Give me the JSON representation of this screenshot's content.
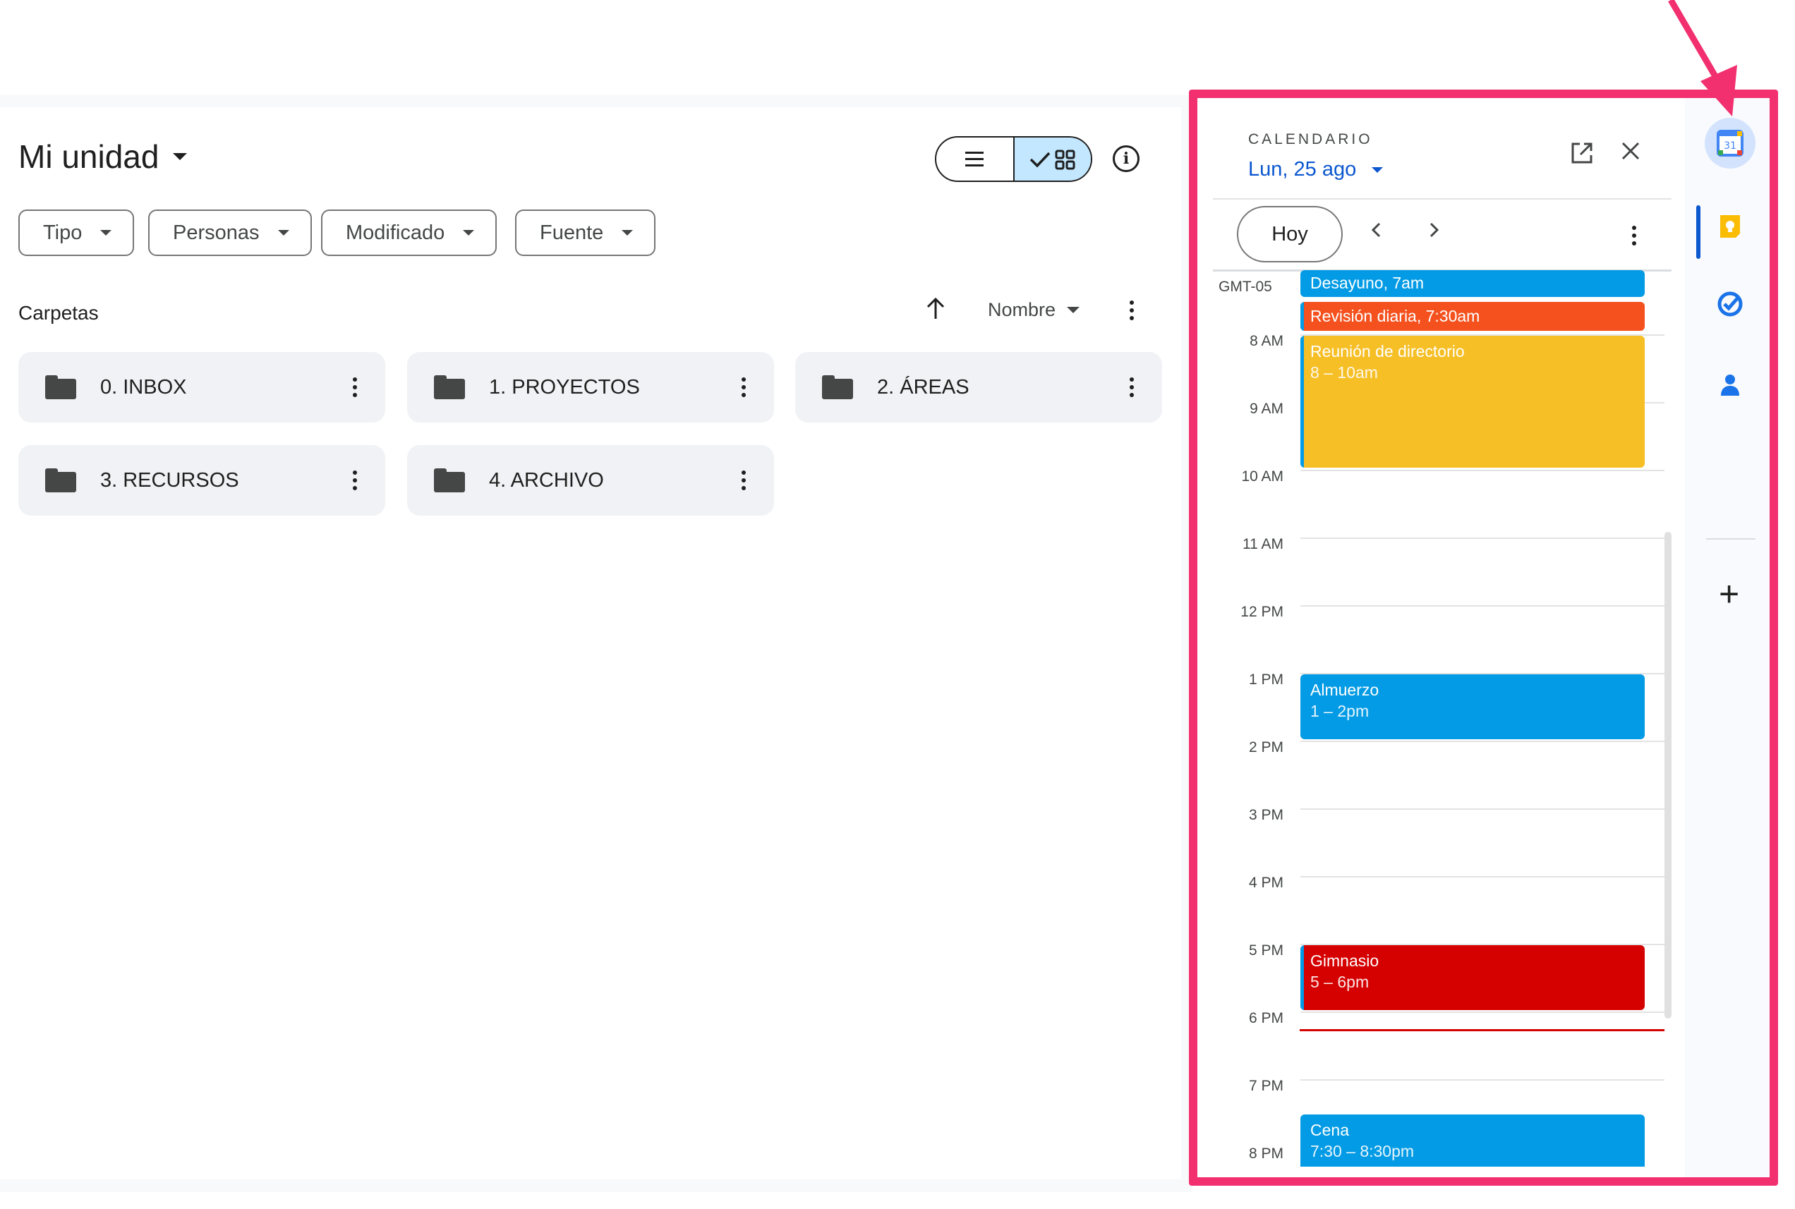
{
  "drive": {
    "title": "Mi unidad",
    "filters": [
      "Tipo",
      "Personas",
      "Modificado",
      "Fuente"
    ],
    "section_label": "Carpetas",
    "sort_label": "Nombre",
    "folders": [
      "0. INBOX",
      "1. PROYECTOS",
      "2. ÁREAS",
      "3. RECURSOS",
      "4. ARCHIVO"
    ]
  },
  "calendar": {
    "header_label": "CALENDARIO",
    "date": "Lun, 25 ago",
    "today_button": "Hoy",
    "timezone": "GMT-05",
    "hours": [
      "8 AM",
      "9 AM",
      "10 AM",
      "11 AM",
      "12 PM",
      "1 PM",
      "2 PM",
      "3 PM",
      "4 PM",
      "5 PM",
      "6 PM",
      "7 PM",
      "8 PM"
    ],
    "events": [
      {
        "title": "Desayuno, 7am",
        "time": "",
        "color": "#039be5"
      },
      {
        "title": "Revisión diaria, 7:30am",
        "time": "",
        "color": "#f4511e"
      },
      {
        "title": "Reunión de directorio",
        "time": "8 – 10am",
        "color": "#f6bf26"
      },
      {
        "title": "Almuerzo",
        "time": "1 – 2pm",
        "color": "#039be5"
      },
      {
        "title": "Gimnasio",
        "time": "5 – 6pm",
        "color": "#d50000"
      },
      {
        "title": "Cena",
        "time": "7:30 – 8:30pm",
        "color": "#039be5"
      }
    ]
  },
  "colors": {
    "highlight": "#f22f6f",
    "accent": "#0b57d0",
    "now_line": "#d50000"
  },
  "rail": {
    "icons": [
      "calendar-icon",
      "keep-icon",
      "tasks-icon",
      "contacts-icon",
      "add-icon",
      "info-icon"
    ],
    "calendar_day": "31"
  }
}
